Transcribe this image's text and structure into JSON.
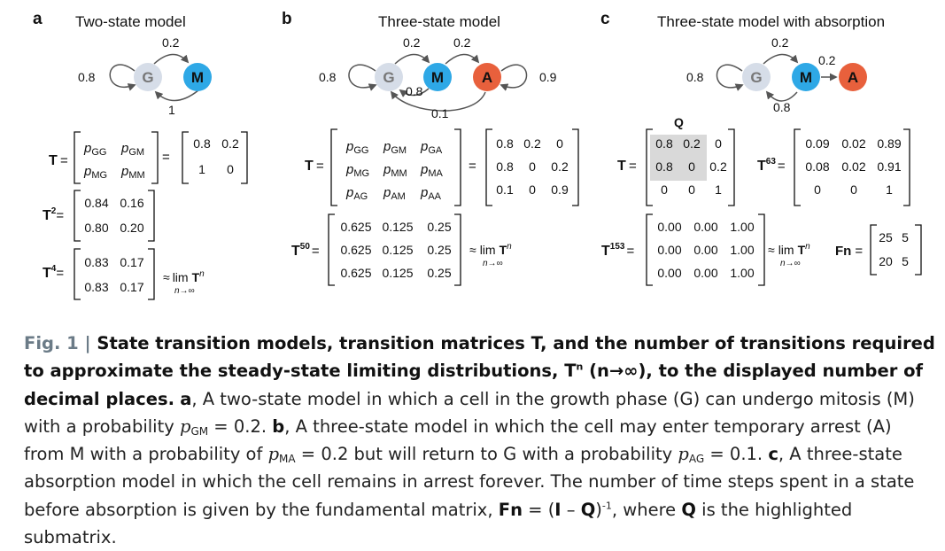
{
  "panels": {
    "a": {
      "label": "a",
      "title": "Two-state model",
      "nodes": [
        "G",
        "M"
      ],
      "probs": {
        "self_g": "0.8",
        "g_to_m": "0.2",
        "m_to_g": "1"
      },
      "t_rows": [
        [
          "0.8",
          "0.2"
        ],
        [
          "1",
          "0"
        ]
      ],
      "t2_rows": [
        [
          "0.84",
          "0.16"
        ],
        [
          "0.80",
          "0.20"
        ]
      ],
      "t4_rows": [
        [
          "0.83",
          "0.17"
        ],
        [
          "0.83",
          "0.17"
        ]
      ],
      "t2_label": "2",
      "t4_label": "4"
    },
    "b": {
      "label": "b",
      "title": "Three-state model",
      "nodes": [
        "G",
        "M",
        "A"
      ],
      "probs": {
        "self_g": "0.8",
        "g_to_m": "0.2",
        "m_to_a": "0.2",
        "m_to_g": "0.8",
        "self_a": "0.9",
        "a_to_g": "0.1"
      },
      "t_rows": [
        [
          "0.8",
          "0.2",
          "0"
        ],
        [
          "0.8",
          "0",
          "0.2"
        ],
        [
          "0.1",
          "0",
          "0.9"
        ]
      ],
      "t50_rows": [
        [
          "0.625",
          "0.125",
          "0.25"
        ],
        [
          "0.625",
          "0.125",
          "0.25"
        ],
        [
          "0.625",
          "0.125",
          "0.25"
        ]
      ],
      "t50_label": "50"
    },
    "c": {
      "label": "c",
      "title": "Three-state model with absorption",
      "nodes": [
        "G",
        "M",
        "A"
      ],
      "probs": {
        "self_g": "0.8",
        "g_to_m": "0.2",
        "m_to_a": "0.2",
        "m_to_g": "0.8"
      },
      "q_label": "Q",
      "t_rows": [
        [
          "0.8",
          "0.2",
          "0"
        ],
        [
          "0.8",
          "0",
          "0.2"
        ],
        [
          "0",
          "0",
          "1"
        ]
      ],
      "t63_rows": [
        [
          "0.09",
          "0.02",
          "0.89"
        ],
        [
          "0.08",
          "0.02",
          "0.91"
        ],
        [
          "0",
          "0",
          "1"
        ]
      ],
      "t153_rows": [
        [
          "0.00",
          "0.00",
          "1.00"
        ],
        [
          "0.00",
          "0.00",
          "1.00"
        ],
        [
          "0.00",
          "0.00",
          "1.00"
        ]
      ],
      "fn_rows": [
        [
          "25",
          "5"
        ],
        [
          "20",
          "5"
        ]
      ],
      "t63_label": "63",
      "t153_label": "153",
      "fn_label": "Fn"
    }
  },
  "common": {
    "T": "T",
    "eq": "=",
    "approx": "≈",
    "lim": "lim",
    "lim_sub": "n→∞",
    "n": "n",
    "p": "p",
    "sub": {
      "GG": "GG",
      "GM": "GM",
      "GA": "GA",
      "MG": "MG",
      "MM": "MM",
      "MA": "MA",
      "AG": "AG",
      "AM": "AM",
      "AA": "AA"
    }
  },
  "colors": {
    "G": "#d6dde8",
    "M": "#2ea8e6",
    "A": "#e8603c",
    "highlight": "#d9d9d9",
    "figlabel": "#6b7b87"
  },
  "caption": {
    "fig_label": "Fig. 1 |",
    "title": " State transition models, transition matrices T, and the number of transitions required to approximate the steady-state limiting distributions, T",
    "title_sup": "n",
    "title_mid": " (n→∞), to the displayed number of decimal places.",
    "a_lbl": "a",
    "a_text": ", A two-state model in which a cell in the growth phase (G) can undergo mitosis (M) with a probability ",
    "p1": "p",
    "p1_sub": "GM",
    "p1_val": " = 0.2. ",
    "b_lbl": "b",
    "b_text": ", A three-state model in which the cell may enter temporary arrest (A) from M with a probability of ",
    "p2": "p",
    "p2_sub": "MA",
    "p2_val": " = 0.2 but will return to G with a probability ",
    "p3": "p",
    "p3_sub": "AG",
    "p3_val": " = 0.1. ",
    "c_lbl": "c",
    "c_text": ", A three-state absorption model in which the cell remains in arrest forever. The number of time steps spent in a state before absorption is given by the fundamental matrix, ",
    "fn": "Fn",
    "fn_eq": " = (",
    "I": "I",
    "minus": " – ",
    "Q": "Q",
    "close": ")",
    "inv": "-1",
    "where": ", where ",
    "Q2": "Q",
    "end": " is the highlighted submatrix."
  }
}
